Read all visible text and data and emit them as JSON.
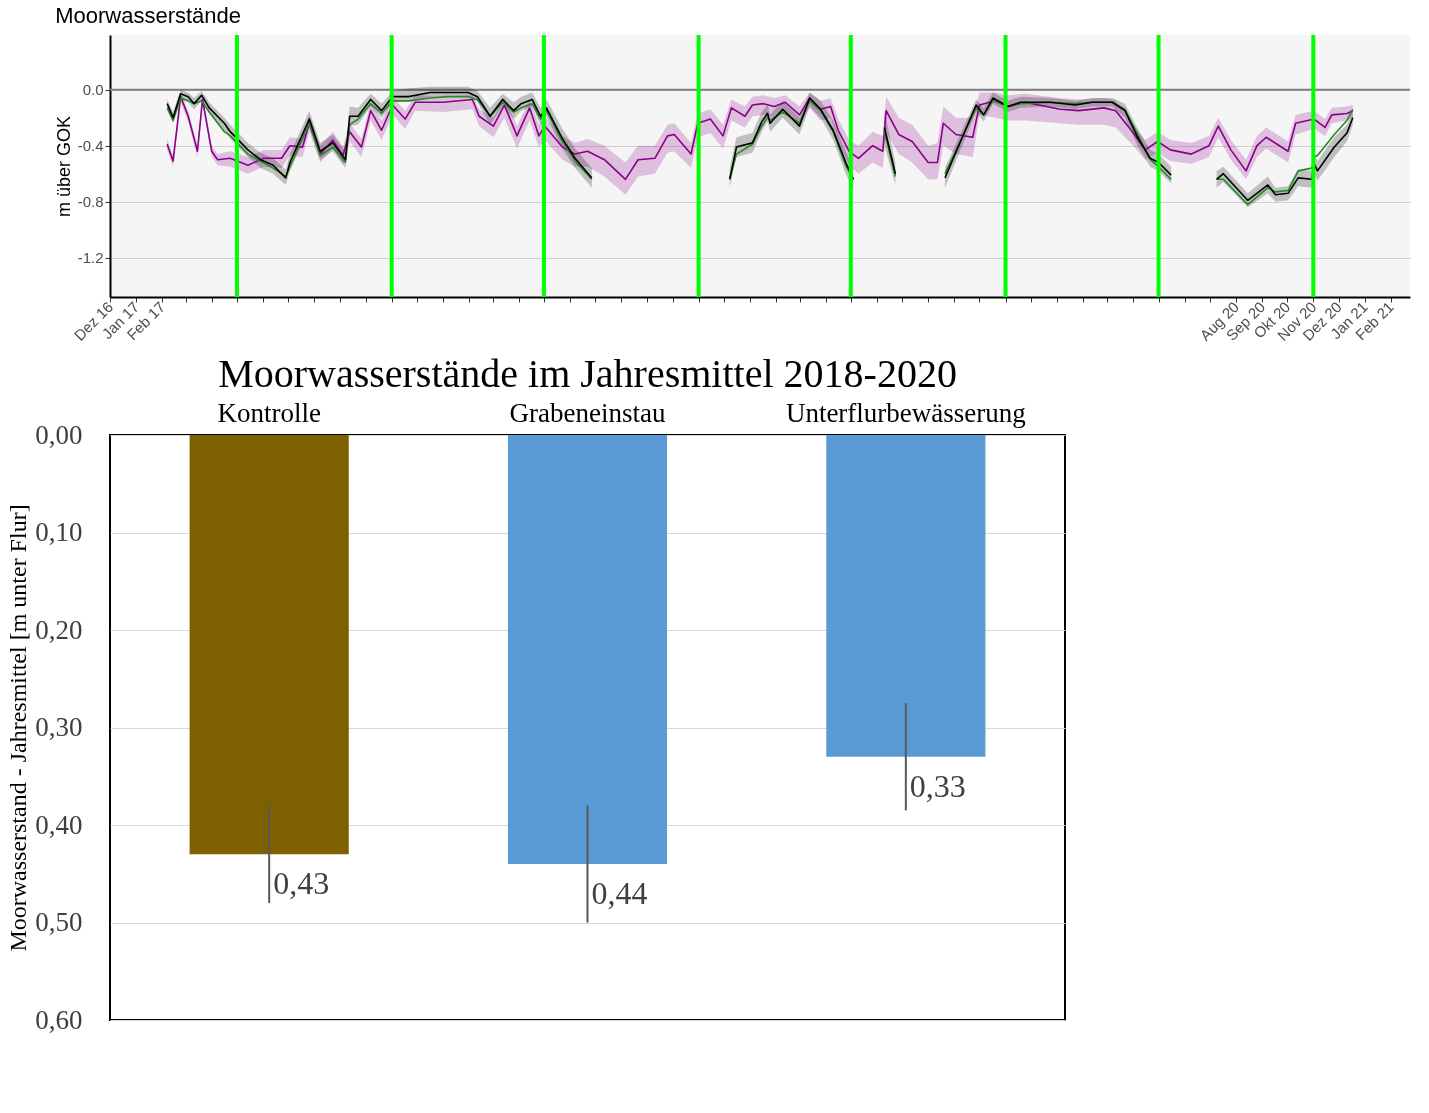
{
  "chart_data": [
    {
      "type": "line",
      "title": "Moorwasserstände",
      "ylabel": "m über GOK",
      "xlim": [
        "2016-12-01",
        "2021-02-24"
      ],
      "ylim": [
        -1.48,
        0.39
      ],
      "yticks": [
        {
          "value": 0,
          "label": "0.0"
        },
        -0.4,
        -0.8,
        -1.2
      ],
      "xticks": [
        {
          "value": "2016-12",
          "label": "Dez 16"
        },
        {
          "value": "2017-01",
          "label": "Jan 17"
        },
        {
          "value": "2017-02",
          "label": "Feb 17"
        },
        {
          "value": "2017-03",
          "label": null
        },
        {
          "value": "2017-04",
          "label": null
        },
        {
          "value": "2017-05",
          "label": null
        },
        {
          "value": "2017-06",
          "label": null
        },
        {
          "value": "2017-07",
          "label": null
        },
        {
          "value": "2017-08",
          "label": null
        },
        {
          "value": "2017-09",
          "label": null
        },
        {
          "value": "2017-10",
          "label": null
        },
        {
          "value": "2017-11",
          "label": null
        },
        {
          "value": "2017-12",
          "label": null
        },
        {
          "value": "2018-01",
          "label": null
        },
        {
          "value": "2018-02",
          "label": null
        },
        {
          "value": "2018-03",
          "label": null
        },
        {
          "value": "2018-04",
          "label": null
        },
        {
          "value": "2018-05",
          "label": null
        },
        {
          "value": "2018-06",
          "label": null
        },
        {
          "value": "2018-07",
          "label": null
        },
        {
          "value": "2018-08",
          "label": null
        },
        {
          "value": "2018-09",
          "label": null
        },
        {
          "value": "2018-10",
          "label": null
        },
        {
          "value": "2018-11",
          "label": null
        },
        {
          "value": "2018-12",
          "label": null
        },
        {
          "value": "2019-01",
          "label": null
        },
        {
          "value": "2019-02",
          "label": null
        },
        {
          "value": "2019-03",
          "label": null
        },
        {
          "value": "2019-04",
          "label": null
        },
        {
          "value": "2019-05",
          "label": null
        },
        {
          "value": "2019-06",
          "label": null
        },
        {
          "value": "2019-07",
          "label": null
        },
        {
          "value": "2019-08",
          "label": null
        },
        {
          "value": "2019-09",
          "label": null
        },
        {
          "value": "2019-10",
          "label": null
        },
        {
          "value": "2019-11",
          "label": null
        },
        {
          "value": "2019-12",
          "label": null
        },
        {
          "value": "2020-01",
          "label": null
        },
        {
          "value": "2020-02",
          "label": null
        },
        {
          "value": "2020-03",
          "label": null
        },
        {
          "value": "2020-04",
          "label": null
        },
        {
          "value": "2020-05",
          "label": null
        },
        {
          "value": "2020-06",
          "label": null
        },
        {
          "value": "2020-07",
          "label": null
        },
        {
          "value": "2020-08",
          "label": "Aug 20"
        },
        {
          "value": "2020-09",
          "label": "Sep 20"
        },
        {
          "value": "2020-10",
          "label": "Okt 20"
        },
        {
          "value": "2020-11",
          "label": "Nov 20"
        },
        {
          "value": "2020-12",
          "label": "Dez 20"
        },
        {
          "value": "2021-01",
          "label": "Jan 21"
        },
        {
          "value": "2021-02",
          "label": "Feb 21"
        }
      ],
      "grid": "y",
      "x": [
        "2017-02-07",
        "2017-02-14",
        "2017-02-23",
        "2017-03-04",
        "2017-03-11",
        "2017-03-20",
        "2017-03-29",
        "2017-04-16",
        "2017-04-23",
        "2017-05-14",
        "2017-05-29",
        "2017-06-13",
        "2017-06-28",
        "2017-07-03",
        "2017-07-26",
        "2017-08-08",
        "2017-08-23",
        "2017-09-07",
        "2017-09-12",
        "2017-09-22",
        "2017-10-07",
        "2017-10-20",
        "2017-11-02",
        "2017-11-21",
        "2017-12-17",
        "2018-01-06",
        "2018-01-31",
        "2018-02-11",
        "2018-02-26",
        "2018-03-13",
        "2018-03-26",
        "2018-04-04",
        "2018-04-17",
        "2018-04-27",
        "2018-05-04",
        "2018-05-23",
        "2018-06-07",
        "2018-06-27",
        "2018-09-04",
        "2018-12-08",
        "2018-12-16",
        "2019-01-04",
        "2019-01-15",
        "2019-01-22",
        "2019-01-25",
        "2019-02-09",
        "2019-03-01",
        "2019-03-13",
        "2019-03-26",
        "2019-04-10",
        "2019-04-25",
        "2019-05-04",
        "2019-05-24",
        "2019-06-10",
        "2019-06-23",
        "2019-07-21",
        "2019-08-21",
        "2019-09-27",
        "2019-10-06",
        "2019-10-17",
        "2019-11-04",
        "2019-11-19",
        "2019-12-24",
        "2020-01-23",
        "2020-02-12",
        "2020-03-07",
        "2020-03-22",
        "2020-04-06",
        "2020-04-21",
        "2020-05-01",
        "2020-05-16",
        "2020-06-10",
        "2020-07-09",
        "2020-07-17",
        "2020-08-15",
        "2020-09-08",
        "2020-09-17",
        "2020-10-02",
        "2020-10-14",
        "2020-10-30",
        "2020-11-02",
        "2020-11-06",
        "2020-11-26",
        "2020-12-11",
        "2020-12-18"
      ],
      "series": [
        {
          "color": "#8b008b",
          "x": [
            "2017-02-07",
            "2017-02-14",
            "2017-02-23",
            "2017-03-04",
            "2017-03-15",
            "2017-03-21",
            "2017-04-01",
            "2017-04-08",
            "2017-04-23",
            "2017-05-14",
            "2017-06-02",
            "2017-06-23",
            "2017-07-03",
            "2017-07-18",
            "2017-07-26",
            "2017-08-08",
            "2017-08-23",
            "2017-09-04",
            "2017-09-12",
            "2017-09-26",
            "2017-10-07",
            "2017-10-20",
            "2017-11-02",
            "2017-11-17",
            "2017-11-29",
            "2018-01-01",
            "2018-02-05",
            "2018-02-13",
            "2018-03-02",
            "2018-03-15",
            "2018-03-30",
            "2018-04-14",
            "2018-04-25",
            "2018-05-02",
            "2018-05-23",
            "2018-06-07",
            "2018-06-22",
            "2018-07-12",
            "2018-08-06",
            "2018-08-21",
            "2018-09-10",
            "2018-09-25",
            "2018-10-03",
            "2018-10-23",
            "2018-10-31",
            "2018-11-15",
            "2018-11-30",
            "2018-12-10",
            "2018-12-26",
            "2019-01-04",
            "2019-01-17",
            "2019-01-30",
            "2019-02-12",
            "2019-03-01",
            "2019-03-13",
            "2019-03-26",
            "2019-04-07",
            "2019-04-16",
            "2019-04-29",
            "2019-05-10",
            "2019-05-27",
            "2019-06-08",
            "2019-06-12",
            "2019-06-27",
            "2019-07-13",
            "2019-08-01",
            "2019-08-12",
            "2019-08-19",
            "2019-09-03",
            "2019-09-23",
            "2019-10-01",
            "2019-10-20",
            "2019-11-03",
            "2019-11-24",
            "2020-01-05",
            "2020-01-27",
            "2020-02-26",
            "2020-03-11",
            "2020-04-01",
            "2020-04-15",
            "2020-04-30",
            "2020-05-15",
            "2020-06-09",
            "2020-06-30",
            "2020-07-11",
            "2020-07-26",
            "2020-08-13",
            "2020-08-26",
            "2020-09-06",
            "2020-10-02",
            "2020-10-11",
            "2020-11-02",
            "2020-11-15",
            "2020-11-23",
            "2020-12-11",
            "2020-12-18"
          ],
          "values": [
            -0.39,
            -0.51,
            -0.05,
            -0.19,
            -0.44,
            -0.07,
            -0.44,
            -0.5,
            -0.49,
            -0.54,
            -0.49,
            -0.49,
            -0.4,
            -0.41,
            -0.24,
            -0.46,
            -0.36,
            -0.47,
            -0.3,
            -0.41,
            -0.15,
            -0.29,
            -0.11,
            -0.21,
            -0.09,
            -0.09,
            -0.07,
            -0.19,
            -0.26,
            -0.11,
            -0.33,
            -0.13,
            -0.33,
            -0.26,
            -0.41,
            -0.46,
            -0.44,
            -0.5,
            -0.64,
            -0.5,
            -0.49,
            -0.33,
            -0.32,
            -0.46,
            -0.24,
            -0.21,
            -0.33,
            -0.13,
            -0.19,
            -0.11,
            -0.1,
            -0.12,
            -0.09,
            -0.18,
            -0.06,
            -0.14,
            -0.12,
            -0.29,
            -0.44,
            -0.49,
            -0.4,
            -0.44,
            -0.15,
            -0.32,
            -0.37,
            -0.52,
            -0.52,
            -0.24,
            -0.32,
            -0.34,
            -0.11,
            -0.08,
            -0.12,
            -0.09,
            -0.14,
            -0.15,
            -0.13,
            -0.15,
            -0.31,
            -0.43,
            -0.37,
            -0.43,
            -0.46,
            -0.4,
            -0.26,
            -0.43,
            -0.58,
            -0.4,
            -0.34,
            -0.44,
            -0.24,
            -0.21,
            -0.27,
            -0.18,
            -0.17,
            -0.15
          ],
          "lower": [
            -0.43,
            -0.55,
            -0.09,
            -0.23,
            -0.48,
            -0.11,
            -0.48,
            -0.54,
            -0.55,
            -0.6,
            -0.55,
            -0.56,
            -0.47,
            -0.48,
            -0.3,
            -0.52,
            -0.42,
            -0.53,
            -0.37,
            -0.48,
            -0.22,
            -0.36,
            -0.18,
            -0.28,
            -0.15,
            -0.16,
            -0.14,
            -0.26,
            -0.34,
            -0.2,
            -0.42,
            -0.22,
            -0.41,
            -0.36,
            -0.5,
            -0.55,
            -0.55,
            -0.62,
            -0.75,
            -0.62,
            -0.6,
            -0.45,
            -0.44,
            -0.56,
            -0.34,
            -0.31,
            -0.42,
            -0.22,
            -0.27,
            -0.19,
            -0.18,
            -0.2,
            -0.16,
            -0.26,
            -0.13,
            -0.22,
            -0.2,
            -0.38,
            -0.54,
            -0.6,
            -0.52,
            -0.56,
            -0.3,
            -0.46,
            -0.52,
            -0.64,
            -0.64,
            -0.4,
            -0.46,
            -0.48,
            -0.18,
            -0.2,
            -0.22,
            -0.22,
            -0.24,
            -0.25,
            -0.25,
            -0.27,
            -0.4,
            -0.5,
            -0.45,
            -0.51,
            -0.53,
            -0.48,
            -0.34,
            -0.5,
            -0.64,
            -0.48,
            -0.42,
            -0.52,
            -0.32,
            -0.28,
            -0.33,
            -0.24,
            -0.22,
            -0.2
          ],
          "upper": [
            -0.35,
            -0.47,
            -0.02,
            -0.15,
            -0.4,
            -0.04,
            -0.4,
            -0.46,
            -0.44,
            -0.48,
            -0.43,
            -0.43,
            -0.34,
            -0.35,
            -0.18,
            -0.4,
            -0.3,
            -0.41,
            -0.24,
            -0.35,
            -0.09,
            -0.22,
            -0.05,
            -0.15,
            -0.04,
            -0.05,
            -0.04,
            -0.14,
            -0.2,
            -0.06,
            -0.26,
            -0.07,
            -0.25,
            -0.19,
            -0.33,
            -0.38,
            -0.35,
            -0.4,
            -0.52,
            -0.4,
            -0.4,
            -0.25,
            -0.24,
            -0.38,
            -0.17,
            -0.14,
            -0.25,
            -0.07,
            -0.12,
            -0.05,
            -0.04,
            -0.06,
            -0.04,
            -0.12,
            -0.02,
            -0.08,
            -0.06,
            -0.21,
            -0.36,
            -0.4,
            -0.3,
            -0.33,
            -0.05,
            -0.2,
            -0.25,
            -0.4,
            -0.38,
            -0.12,
            -0.2,
            -0.2,
            -0.02,
            -0.02,
            -0.04,
            -0.03,
            -0.06,
            -0.07,
            -0.06,
            -0.08,
            -0.25,
            -0.36,
            -0.3,
            -0.36,
            -0.38,
            -0.33,
            -0.2,
            -0.36,
            -0.5,
            -0.33,
            -0.27,
            -0.37,
            -0.18,
            -0.15,
            -0.21,
            -0.13,
            -0.12,
            -0.11
          ]
        },
        {
          "color": "#228b22",
          "values": [
            -0.13,
            -0.22,
            -0.06,
            -0.08,
            -0.1,
            -0.08,
            -0.16,
            -0.3,
            -0.33,
            -0.46,
            -0.51,
            -0.56,
            -0.62,
            -0.55,
            -0.24,
            -0.47,
            -0.41,
            -0.52,
            -0.25,
            -0.21,
            -0.1,
            -0.17,
            -0.08,
            -0.08,
            -0.06,
            -0.05,
            -0.05,
            -0.07,
            -0.19,
            -0.09,
            -0.16,
            -0.13,
            -0.1,
            -0.21,
            -0.15,
            -0.37,
            -0.51,
            -0.64,
            null,
            -0.63,
            -0.46,
            -0.39,
            -0.26,
            -0.2,
            -0.22,
            -0.16,
            -0.24,
            -0.08,
            -0.15,
            -0.3,
            -0.54,
            -0.64,
            null,
            -0.3,
            -0.62,
            null,
            -0.6,
            -0.13,
            -0.18,
            -0.08,
            -0.12,
            -0.1,
            -0.09,
            -0.1,
            -0.09,
            -0.09,
            -0.14,
            -0.32,
            -0.5,
            -0.55,
            -0.64,
            null,
            -0.64,
            -0.64,
            -0.82,
            -0.7,
            -0.73,
            -0.72,
            -0.58,
            -0.56,
            -0.48,
            -0.47,
            -0.32,
            -0.22,
            -0.14
          ]
        },
        {
          "color": "#000000",
          "values": [
            -0.1,
            -0.2,
            -0.03,
            -0.05,
            -0.1,
            -0.04,
            -0.13,
            -0.24,
            -0.3,
            -0.43,
            -0.5,
            -0.54,
            -0.63,
            -0.52,
            -0.21,
            -0.44,
            -0.38,
            -0.5,
            -0.19,
            -0.19,
            -0.07,
            -0.15,
            -0.05,
            -0.05,
            -0.02,
            -0.02,
            -0.02,
            -0.05,
            -0.19,
            -0.07,
            -0.15,
            -0.1,
            -0.07,
            -0.19,
            -0.13,
            -0.35,
            -0.49,
            -0.63,
            null,
            -0.64,
            -0.41,
            -0.38,
            -0.23,
            -0.17,
            -0.24,
            -0.14,
            -0.26,
            -0.06,
            -0.14,
            -0.29,
            -0.52,
            -0.64,
            null,
            -0.27,
            -0.6,
            null,
            -0.63,
            -0.11,
            -0.18,
            -0.06,
            -0.12,
            -0.09,
            -0.09,
            -0.11,
            -0.09,
            -0.09,
            -0.15,
            -0.34,
            -0.49,
            -0.52,
            -0.61,
            null,
            -0.64,
            -0.6,
            -0.79,
            -0.68,
            -0.75,
            -0.74,
            -0.63,
            -0.64,
            -0.53,
            -0.58,
            -0.41,
            -0.31,
            -0.2
          ],
          "lower": [
            -0.14,
            -0.24,
            -0.07,
            -0.09,
            -0.14,
            -0.08,
            -0.17,
            -0.29,
            -0.35,
            -0.48,
            -0.56,
            -0.6,
            -0.68,
            -0.58,
            -0.27,
            -0.5,
            -0.44,
            -0.56,
            -0.26,
            -0.25,
            -0.12,
            -0.2,
            -0.09,
            -0.08,
            -0.05,
            -0.05,
            -0.05,
            -0.09,
            -0.25,
            -0.12,
            -0.21,
            -0.15,
            -0.12,
            -0.25,
            -0.19,
            -0.42,
            -0.56,
            -0.7,
            null,
            -0.7,
            -0.48,
            -0.45,
            -0.3,
            -0.23,
            -0.3,
            -0.2,
            -0.32,
            -0.12,
            -0.2,
            -0.36,
            -0.6,
            -0.72,
            null,
            -0.4,
            -0.68,
            null,
            -0.7,
            -0.16,
            -0.23,
            -0.1,
            -0.16,
            -0.13,
            -0.12,
            -0.14,
            -0.12,
            -0.12,
            -0.2,
            -0.4,
            -0.55,
            -0.58,
            -0.67,
            null,
            -0.7,
            -0.66,
            -0.84,
            -0.74,
            -0.8,
            -0.79,
            -0.69,
            -0.7,
            -0.6,
            -0.65,
            -0.48,
            -0.37,
            -0.25
          ],
          "upper": [
            -0.07,
            -0.16,
            0.0,
            -0.02,
            -0.06,
            -0.01,
            -0.09,
            -0.2,
            -0.25,
            -0.38,
            -0.45,
            -0.49,
            -0.57,
            -0.46,
            -0.15,
            -0.38,
            -0.32,
            -0.44,
            -0.12,
            -0.13,
            -0.03,
            -0.1,
            -0.01,
            0.01,
            0.02,
            0.02,
            0.02,
            -0.01,
            -0.13,
            -0.03,
            -0.09,
            -0.05,
            -0.02,
            -0.13,
            -0.07,
            -0.28,
            -0.42,
            -0.56,
            null,
            -0.56,
            -0.34,
            -0.31,
            -0.16,
            -0.11,
            -0.18,
            -0.08,
            -0.2,
            -0.02,
            -0.08,
            -0.22,
            -0.44,
            -0.56,
            null,
            -0.15,
            -0.52,
            null,
            -0.56,
            -0.07,
            -0.13,
            -0.02,
            -0.08,
            -0.05,
            -0.06,
            -0.08,
            -0.06,
            -0.06,
            -0.1,
            -0.28,
            -0.43,
            -0.46,
            -0.55,
            null,
            -0.58,
            -0.55,
            -0.74,
            -0.62,
            -0.7,
            -0.69,
            -0.57,
            -0.58,
            -0.46,
            -0.51,
            -0.34,
            -0.25,
            -0.15
          ]
        }
      ],
      "ref_lines": [
        {
          "axis": "y",
          "value": 0,
          "color": "#7f7f7f"
        },
        {
          "axis": "x",
          "value": "2017-05-01",
          "color": "#00ff00"
        },
        {
          "axis": "x",
          "value": "2017-11-01",
          "color": "#00ff00"
        },
        {
          "axis": "x",
          "value": "2018-05-01",
          "color": "#00ff00"
        },
        {
          "axis": "x",
          "value": "2018-11-01",
          "color": "#00ff00"
        },
        {
          "axis": "x",
          "value": "2019-05-01",
          "color": "#00ff00"
        },
        {
          "axis": "x",
          "value": "2019-11-01",
          "color": "#00ff00"
        },
        {
          "axis": "x",
          "value": "2020-05-01",
          "color": "#00ff00"
        },
        {
          "axis": "x",
          "value": "2020-11-01",
          "color": "#00ff00"
        }
      ]
    },
    {
      "type": "bar",
      "title": "Moorwasserstände im Jahresmittel 2018-2020",
      "ylabel": "Moorwasserstand - Jahresmittel [m unter Flur]",
      "categories": [
        "Kontrolle",
        "Grabeneinstau",
        "Unterflurbewässerung"
      ],
      "values": [
        0.43,
        0.44,
        0.33
      ],
      "colors": [
        "#7f6000",
        "#5b9bd5",
        "#5b9bd5"
      ],
      "errors": [
        0.05,
        0.06,
        0.055
      ],
      "value_labels": [
        "0,43",
        "0,44",
        "0,33"
      ],
      "ylim": [
        0.6,
        0
      ],
      "yticks": [
        {
          "value": 0,
          "label": "0,00"
        },
        {
          "value": 0.1,
          "label": "0,10"
        },
        {
          "value": 0.2,
          "label": "0,20"
        },
        {
          "value": 0.3,
          "label": "0,30"
        },
        {
          "value": 0.4,
          "label": "0,40"
        },
        {
          "value": 0.5,
          "label": "0,50"
        },
        {
          "value": 0.6,
          "label": "0,60"
        }
      ],
      "grid": "y"
    }
  ]
}
